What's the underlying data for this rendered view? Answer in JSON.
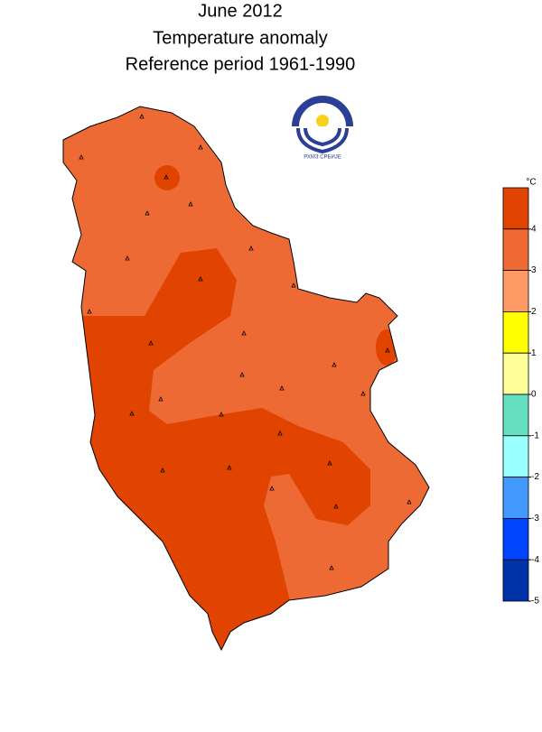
{
  "header": {
    "title_lines": [
      "June 2012",
      "Temperature anomaly",
      "Reference period 1961-1990"
    ]
  },
  "logo": {
    "text": "РХМЗ СРБИЈЕ"
  },
  "legend": {
    "unit": "°C",
    "colors": [
      "#e04400",
      "#f06a35",
      "#ff9966",
      "#ffff00",
      "#ffff99",
      "#66e0c0",
      "#99ffff",
      "#4499ff",
      "#0044ff",
      "#0033aa"
    ],
    "ticks": [
      4,
      3,
      2,
      1,
      0,
      -1,
      -2,
      -3,
      -4,
      -5
    ]
  }
}
